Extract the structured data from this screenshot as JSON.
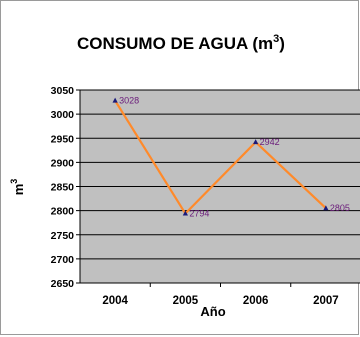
{
  "chart_data": {
    "type": "line",
    "title": "CONSUMO DE AGUA (m",
    "title_sup": "3",
    "title_close": ")",
    "xlabel": "Año",
    "ylabel": "m",
    "ylabel_sup": "3",
    "categories": [
      "2004",
      "2005",
      "2006",
      "2007"
    ],
    "series": [
      {
        "values": [
          3028,
          2794,
          2942,
          2805
        ]
      }
    ],
    "data_labels": [
      "3028",
      "2794",
      "2942",
      "2805"
    ],
    "yticks": [
      "3050",
      "3000",
      "2950",
      "2900",
      "2850",
      "2800",
      "2750",
      "2700",
      "2650"
    ],
    "ylim": [
      2650,
      3050
    ],
    "grid": true,
    "legend": "none",
    "colors": {
      "plot_bg": "#c0c0c0",
      "line": "#ff8a2a",
      "marker": "#1a1a7a",
      "data_label": "#6a1b7a",
      "grid": "#000000"
    }
  }
}
